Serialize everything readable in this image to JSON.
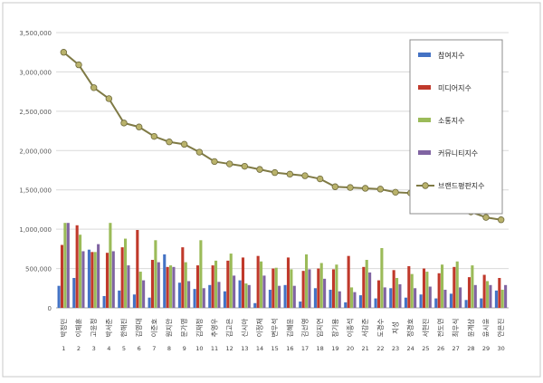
{
  "chart_data": {
    "type": "bar",
    "ylim": [
      0,
      3500000
    ],
    "yticks": [
      "0",
      "500,000",
      "1,000,000",
      "1,500,000",
      "2,000,000",
      "2,500,000",
      "3,000,000",
      "3,500,000"
    ],
    "grid": true,
    "legend_position": "top-right",
    "categories": [
      "박정민",
      "이제훈",
      "고윤정",
      "박서준",
      "한해진",
      "김영대",
      "이준호",
      "원지안",
      "문가영",
      "김재정",
      "추영우",
      "김고은",
      "신시아",
      "이정재",
      "변우석",
      "김혜윤",
      "김선영",
      "임지연",
      "장기용",
      "이종석",
      "서강준",
      "도경수",
      "지성",
      "정경호",
      "서현진",
      "전도연",
      "최우식",
      "윤계상",
      "윤시윤",
      "안은진"
    ],
    "xnums": [
      "1",
      "2",
      "3",
      "4",
      "5",
      "6",
      "7",
      "8",
      "9",
      "10",
      "11",
      "12",
      "13",
      "14",
      "15",
      "16",
      "17",
      "18",
      "19",
      "20",
      "21",
      "22",
      "23",
      "24",
      "25",
      "26",
      "27",
      "28",
      "29",
      "30"
    ],
    "series": [
      {
        "name": "참여지수",
        "color": "#4472C4",
        "values": [
          280000,
          380000,
          740000,
          150000,
          220000,
          170000,
          130000,
          680000,
          320000,
          240000,
          290000,
          210000,
          350000,
          60000,
          230000,
          290000,
          80000,
          250000,
          230000,
          70000,
          160000,
          120000,
          250000,
          130000,
          170000,
          120000,
          180000,
          100000,
          120000,
          220000
        ]
      },
      {
        "name": "미디어지수",
        "color": "#C0392B",
        "values": [
          800000,
          1050000,
          710000,
          700000,
          770000,
          990000,
          610000,
          520000,
          770000,
          540000,
          540000,
          600000,
          640000,
          660000,
          500000,
          640000,
          470000,
          500000,
          490000,
          660000,
          520000,
          350000,
          480000,
          530000,
          500000,
          440000,
          520000,
          390000,
          420000,
          380000
        ]
      },
      {
        "name": "소통지수",
        "color": "#9BBB59",
        "values": [
          1080000,
          930000,
          710000,
          1080000,
          880000,
          460000,
          860000,
          540000,
          580000,
          860000,
          600000,
          690000,
          310000,
          590000,
          510000,
          490000,
          680000,
          570000,
          550000,
          260000,
          610000,
          760000,
          380000,
          430000,
          460000,
          550000,
          590000,
          540000,
          340000,
          230000
        ]
      },
      {
        "name": "커뮤니티지수",
        "color": "#8064A2",
        "values": [
          1080000,
          720000,
          810000,
          720000,
          540000,
          350000,
          580000,
          520000,
          340000,
          250000,
          330000,
          410000,
          290000,
          410000,
          280000,
          280000,
          490000,
          370000,
          210000,
          200000,
          450000,
          260000,
          300000,
          250000,
          270000,
          230000,
          260000,
          290000,
          290000,
          290000
        ]
      },
      {
        "name": "브랜드평판지수",
        "color": "#7F7A45",
        "values": [
          3250000,
          3090000,
          2800000,
          2660000,
          2350000,
          2300000,
          2180000,
          2110000,
          2080000,
          1980000,
          1860000,
          1830000,
          1800000,
          1760000,
          1720000,
          1700000,
          1680000,
          1640000,
          1540000,
          1530000,
          1520000,
          1510000,
          1470000,
          1460000,
          1430000,
          1350000,
          1280000,
          1220000,
          1150000,
          1120000
        ]
      }
    ]
  }
}
